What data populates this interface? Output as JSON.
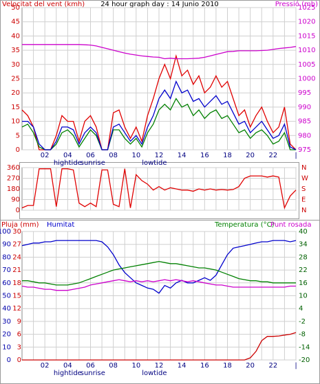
{
  "chart_data": [
    {
      "type": "line",
      "title": "24 hour graph day : 14 Junio 2010",
      "ylabel": "Velocitat del vent (kmh)",
      "y2label": "Pressió (mb)",
      "xlim": [
        0,
        24
      ],
      "xticks": [
        {
          "value": 2,
          "label": "02"
        },
        {
          "value": 4,
          "label": "04"
        },
        {
          "value": 6,
          "label": "06"
        },
        {
          "value": 8,
          "label": "08"
        },
        10,
        12,
        14,
        16,
        18,
        20,
        22,
        {
          "value": 24,
          "label": "|"
        }
      ],
      "xminor": [
        1,
        3,
        5,
        7,
        9,
        11,
        13,
        15,
        17,
        19,
        21,
        23
      ],
      "annotations": [
        {
          "text": "hightide",
          "x": 4
        },
        {
          "text": "sunrise",
          "x": 6.2
        },
        {
          "text": "lowtide",
          "x": 11.6
        }
      ],
      "ylim": [
        0,
        50
      ],
      "yticks": [
        0,
        5,
        10,
        15,
        20,
        25,
        30,
        35,
        40,
        45,
        50
      ],
      "ycolor": "#cc0000",
      "y2lim": [
        975,
        1025
      ],
      "y2ticks": [
        975,
        980,
        985,
        990,
        995,
        1000,
        1005,
        1010,
        1015,
        1020,
        1025
      ],
      "y2color": "#cc00cc",
      "grid": true,
      "x": [
        0,
        0.5,
        1,
        1.5,
        2,
        2.5,
        3,
        3.5,
        4,
        4.5,
        5,
        5.5,
        6,
        6.5,
        7,
        7.5,
        8,
        8.5,
        9,
        9.5,
        10,
        10.5,
        11,
        11.5,
        12,
        12.5,
        13,
        13.5,
        14,
        14.5,
        15,
        15.5,
        16,
        16.5,
        17,
        17.5,
        18,
        18.5,
        19,
        19.5,
        20,
        20.5,
        21,
        21.5,
        22,
        22.5,
        23,
        23.5,
        24
      ],
      "series": [
        {
          "color": "#e00000",
          "axis": "y",
          "values": [
            14,
            12,
            8,
            0,
            0,
            0,
            5,
            12,
            10,
            10,
            3,
            10,
            12,
            8,
            0,
            0,
            13,
            14,
            8,
            4,
            8,
            3,
            12,
            18,
            25,
            30,
            25,
            33,
            26,
            28,
            23,
            26,
            20,
            22,
            26,
            22,
            24,
            18,
            12,
            14,
            8,
            12,
            15,
            10,
            6,
            8,
            15,
            2,
            0
          ]
        },
        {
          "color": "#008000",
          "axis": "y",
          "values": [
            8,
            9,
            6,
            1,
            0,
            0,
            2,
            6,
            7,
            5,
            1,
            4,
            7,
            5,
            0,
            0,
            7,
            7,
            4,
            2,
            4,
            1,
            6,
            9,
            14,
            16,
            14,
            18,
            15,
            16,
            12,
            14,
            11,
            13,
            14,
            11,
            12,
            9,
            6,
            7,
            4,
            6,
            7,
            5,
            2,
            3,
            6,
            0,
            0
          ]
        },
        {
          "color": "#0000cc",
          "axis": "y",
          "values": [
            10,
            10,
            8,
            2,
            0,
            0,
            3,
            8,
            8,
            7,
            2,
            6,
            8,
            6,
            0,
            0,
            8,
            9,
            6,
            3,
            5,
            2,
            8,
            12,
            18,
            21,
            18,
            24,
            20,
            21,
            17,
            18,
            15,
            17,
            19,
            16,
            17,
            13,
            9,
            10,
            6,
            8,
            10,
            7,
            4,
            5,
            9,
            1,
            0
          ]
        },
        {
          "color": "#cc00cc",
          "axis": "y2",
          "values": [
            1012,
            1012,
            1012,
            1012,
            1012,
            1012,
            1012,
            1012,
            1012,
            1012,
            1012,
            1011.9,
            1011.8,
            1011.5,
            1011,
            1010.5,
            1010,
            1009.5,
            1009,
            1008.6,
            1008.3,
            1008,
            1007.8,
            1007.6,
            1007.5,
            1007,
            1007.2,
            1007,
            1007,
            1007,
            1007.1,
            1007.2,
            1007.5,
            1008,
            1008.5,
            1009,
            1009.5,
            1009.6,
            1009.8,
            1009.8,
            1009.8,
            1009.8,
            1009.9,
            1010,
            1010.3,
            1010.6,
            1010.8,
            1011,
            1011.3
          ]
        }
      ]
    },
    {
      "type": "line",
      "xlim": [
        0,
        24
      ],
      "xticks": [
        {
          "value": 2,
          "label": "02"
        },
        {
          "value": 4,
          "label": "04"
        },
        {
          "value": 6,
          "label": "06"
        },
        {
          "value": 8,
          "label": "08"
        },
        10,
        12,
        14,
        16,
        18,
        20,
        22,
        {
          "value": 24,
          "label": "|"
        }
      ],
      "xminor": [
        1,
        3,
        5,
        7,
        9,
        11,
        13,
        15,
        17,
        19,
        21,
        23
      ],
      "ylim": [
        0,
        360
      ],
      "yticks": [
        0,
        90,
        180,
        270,
        360
      ],
      "ycolor": "#cc0000",
      "y2lim": [
        0,
        360
      ],
      "y2ticks": [
        {
          "value": 0,
          "label": "N"
        },
        {
          "value": 90,
          "label": "E"
        },
        {
          "value": 180,
          "label": "S"
        },
        {
          "value": 270,
          "label": "W"
        },
        {
          "value": 360,
          "label": "N"
        }
      ],
      "y2color": "#cc0000",
      "grid": true,
      "x": [
        0,
        0.5,
        1,
        1.5,
        2,
        2.5,
        3,
        3.5,
        4,
        4.5,
        5,
        5.5,
        6,
        6.5,
        7,
        7.5,
        8,
        8.5,
        9,
        9.5,
        10,
        10.5,
        11,
        11.5,
        12,
        12.5,
        13,
        13.5,
        14,
        14.5,
        15,
        15.5,
        16,
        16.5,
        17,
        17.5,
        18,
        18.5,
        19,
        19.5,
        20,
        20.5,
        21,
        21.5,
        22,
        22.5,
        23,
        23.5,
        24
      ],
      "series": [
        {
          "color": "#e00000",
          "axis": "y",
          "values": [
            20,
            40,
            40,
            350,
            350,
            350,
            30,
            350,
            350,
            340,
            60,
            30,
            60,
            30,
            340,
            340,
            50,
            30,
            350,
            20,
            300,
            250,
            220,
            170,
            200,
            170,
            190,
            180,
            170,
            170,
            160,
            180,
            170,
            180,
            170,
            175,
            170,
            175,
            200,
            270,
            290,
            290,
            290,
            280,
            290,
            280,
            20,
            120,
            170
          ]
        }
      ]
    },
    {
      "type": "line",
      "xlim": [
        0,
        24
      ],
      "xticks": [
        {
          "value": 2,
          "label": "02"
        },
        {
          "value": 4,
          "label": "04"
        },
        {
          "value": 6,
          "label": "06"
        },
        {
          "value": 8,
          "label": "08"
        },
        10,
        12,
        14,
        16,
        18,
        20,
        22,
        {
          "value": 24,
          "label": "|"
        }
      ],
      "xminor": [
        1,
        3,
        5,
        7,
        9,
        11,
        13,
        15,
        17,
        19,
        21,
        23
      ],
      "annotations": [
        {
          "text": "hightide",
          "x": 4
        },
        {
          "text": "sunrise",
          "x": 6.2
        },
        {
          "text": "lowtide",
          "x": 11.6
        }
      ],
      "ylim": [
        0,
        100
      ],
      "yticks": [
        0,
        10,
        20,
        30,
        40,
        50,
        60,
        70,
        80,
        90,
        100
      ],
      "ycolor": "#0000aa",
      "y2lim": [
        0,
        30
      ],
      "y2ticks": [
        0,
        3,
        6,
        9,
        12,
        15,
        18,
        21,
        24,
        27,
        30
      ],
      "y2color": "#cc0000",
      "y3lim": [
        -20,
        40
      ],
      "y3ticks": [
        -20,
        -14,
        -8,
        -2,
        4,
        10,
        16,
        22,
        28,
        34,
        40
      ],
      "y3color": "#006000",
      "grid": true,
      "x": [
        0,
        0.5,
        1,
        1.5,
        2,
        2.5,
        3,
        3.5,
        4,
        4.5,
        5,
        5.5,
        6,
        6.5,
        7,
        7.5,
        8,
        8.5,
        9,
        9.5,
        10,
        10.5,
        11,
        11.5,
        12,
        12.5,
        13,
        13.5,
        14,
        14.5,
        15,
        15.5,
        16,
        16.5,
        17,
        17.5,
        18,
        18.5,
        19,
        19.5,
        20,
        20.5,
        21,
        21.5,
        22,
        22.5,
        23,
        23.5,
        24
      ],
      "series": [
        {
          "name": "Pluja (mm)",
          "color": "#cc0000",
          "axis": "y2",
          "values": [
            0,
            0,
            0,
            0,
            0,
            0,
            0,
            0,
            0,
            0,
            0,
            0,
            0,
            0,
            0,
            0,
            0,
            0,
            0,
            0,
            0,
            0,
            0,
            0,
            0,
            0,
            0,
            0,
            0,
            0,
            0,
            0,
            0,
            0,
            0,
            0,
            0,
            0,
            0,
            0,
            0.5,
            2,
            4.5,
            5.5,
            5.5,
            5.6,
            5.8,
            6,
            6.4
          ]
        },
        {
          "name": "Humitat",
          "color": "#0000cc",
          "axis": "y",
          "values": [
            89,
            90,
            91,
            91,
            92,
            92,
            93,
            93,
            93,
            93,
            93,
            93,
            93,
            93,
            92,
            88,
            82,
            74,
            68,
            64,
            60,
            58,
            56,
            55,
            52,
            58,
            56,
            60,
            62,
            60,
            60,
            62,
            64,
            62,
            66,
            74,
            82,
            87,
            88,
            89,
            90,
            91,
            92,
            92,
            93,
            93,
            93,
            92,
            93
          ]
        },
        {
          "name": "Temperatura (°C)",
          "color": "#008000",
          "axis": "y3",
          "values": [
            17,
            17,
            16.5,
            16,
            16,
            15.5,
            15,
            15,
            15,
            15.5,
            16,
            17,
            18,
            19,
            20,
            21,
            22,
            22.5,
            23,
            23.5,
            24,
            24.5,
            25,
            25.5,
            26,
            25.5,
            25,
            25,
            24.5,
            24,
            23.5,
            23,
            23,
            22.5,
            22,
            21,
            20,
            19,
            18,
            17.5,
            17,
            17,
            16.5,
            16.5,
            16,
            16,
            16,
            16,
            16
          ]
        },
        {
          "name": "Punt rosada",
          "color": "#cc00cc",
          "axis": "y3",
          "values": [
            14.5,
            14,
            14,
            13.5,
            13,
            13,
            12.5,
            12.5,
            12.5,
            13,
            13.5,
            14,
            15,
            15.5,
            16,
            16.5,
            17,
            17.5,
            17,
            16.5,
            17,
            16.5,
            17,
            16.5,
            17,
            17.5,
            17,
            17.5,
            17,
            16.5,
            17,
            16.5,
            16,
            15.5,
            15,
            15,
            14.5,
            14,
            14,
            14,
            14,
            14,
            14,
            14,
            14,
            14,
            14,
            14.5,
            14.5
          ]
        }
      ]
    }
  ]
}
